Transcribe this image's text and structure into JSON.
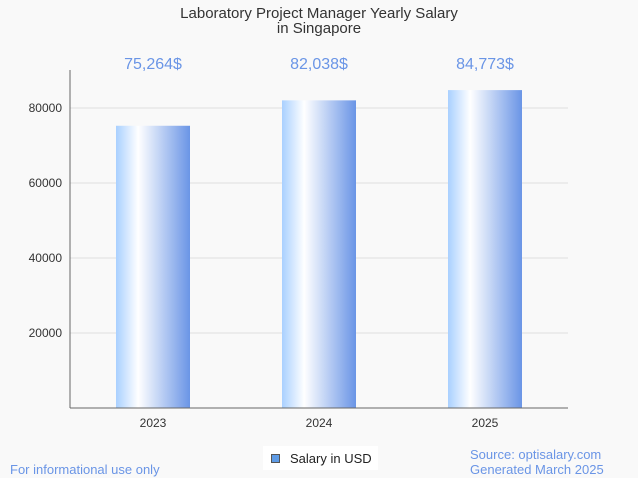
{
  "chart_data": {
    "type": "bar",
    "title": [
      "Laboratory Project Manager Yearly Salary",
      "in Singapore"
    ],
    "categories": [
      "2023",
      "2024",
      "2025"
    ],
    "values": [
      75264,
      82038,
      84773
    ],
    "data_labels": [
      "75,264$",
      "82,038$",
      "84,773$"
    ],
    "xlabel": "",
    "ylabel": "",
    "ylim": [
      0,
      80000
    ],
    "yticks": [
      20000,
      40000,
      60000,
      80000
    ],
    "grid": true,
    "legend": {
      "label": "Salary in USD",
      "placement": "bottom-center"
    },
    "colors": {
      "bar_light": "#a9d0ff",
      "bar_dark": "#6a95e6",
      "label": "#6a95e6"
    }
  },
  "footer": {
    "disclaimer": "For informational use only",
    "source": "Source: optisalary.com",
    "generated": "Generated March 2025"
  }
}
